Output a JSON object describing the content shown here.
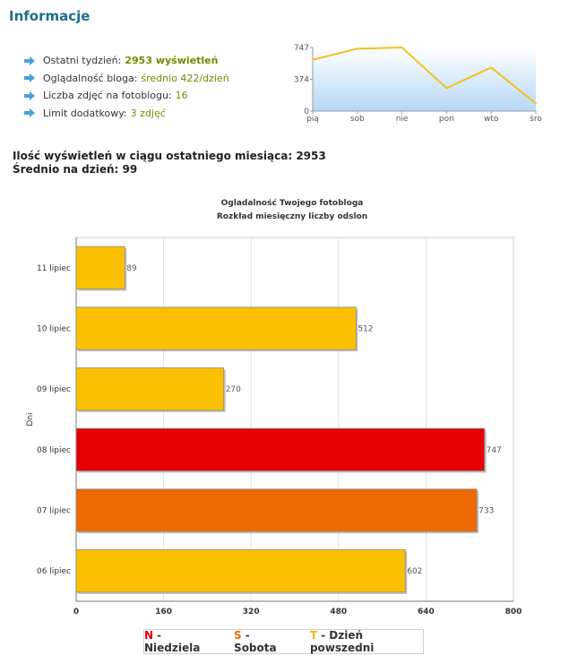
{
  "header": {
    "title": "Informacje"
  },
  "info": {
    "items": [
      {
        "label": "Ostatni tydzień:",
        "value": "2953 wyświetleń",
        "bold": true
      },
      {
        "label": "Oglądalność bloga:",
        "value": "średnio 422/dzień",
        "bold": false
      },
      {
        "label": "Liczba zdjęć na fotoblogu:",
        "value": "16",
        "bold": false
      },
      {
        "label": "Limit dodatkowy:",
        "value": "3 zdjęć",
        "bold": false
      }
    ]
  },
  "summary": {
    "line1": "Ilość wyświetleń w ciągu ostatniego miesiąca: 2953",
    "line2": "Średnio na dzień: 99"
  },
  "chart_data": [
    {
      "type": "line",
      "categories": [
        "pią",
        "sob",
        "nie",
        "pon",
        "wto",
        "śro"
      ],
      "values": [
        602,
        733,
        747,
        270,
        512,
        89
      ],
      "yticks": [
        "747",
        "374",
        "0"
      ],
      "ylim": [
        0,
        747
      ],
      "grid": false,
      "colors": {
        "line": "#f3c01b",
        "fill_top": "#ffffff",
        "fill_bottom": "#b6d8f7"
      }
    },
    {
      "type": "bar",
      "orientation": "horizontal",
      "title": "Ogladalność Twojego fotobloga",
      "subtitle": "Rozkład miesięczny liczby odslon",
      "ylabel": "Dni",
      "xlabel": "",
      "xlim": [
        0,
        800
      ],
      "xticks": [
        "0",
        "160",
        "320",
        "480",
        "640",
        "800"
      ],
      "categories": [
        "11 lipiec",
        "10 lipiec",
        "09 lipiec",
        "08 lipiec",
        "07 lipiec",
        "06 lipiec"
      ],
      "values": [
        89,
        512,
        270,
        747,
        733,
        602
      ],
      "day_types": [
        "T",
        "T",
        "T",
        "N",
        "S",
        "T"
      ],
      "grid": true,
      "colors": {
        "N": "#e60000",
        "S": "#ee6a00",
        "T": "#fbc100"
      }
    }
  ],
  "legend": {
    "items": [
      {
        "key": "N",
        "label": "- Niedziela",
        "color": "#e60000"
      },
      {
        "key": "S",
        "label": "- Sobota",
        "color": "#ee6a00"
      },
      {
        "key": "T",
        "label": "- Dzień powszedni",
        "color": "#f5b800"
      }
    ]
  }
}
